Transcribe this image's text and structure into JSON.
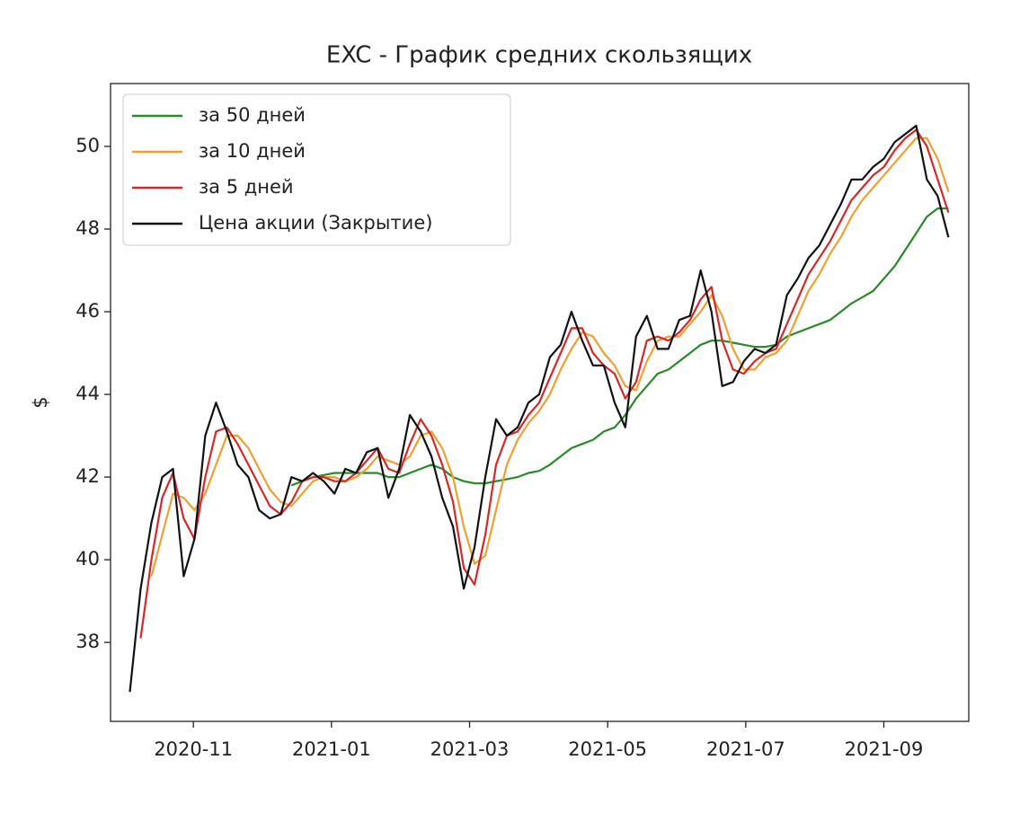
{
  "chart_data": {
    "type": "line",
    "title": "EXC - График средних скользящих",
    "ylabel": "$",
    "x": [
      10.08,
      10.236,
      10.392,
      10.548,
      10.704,
      10.86,
      11.016,
      11.172,
      11.328,
      11.484,
      11.64,
      11.796,
      11.952,
      12.108,
      12.264,
      12.42,
      12.576,
      12.732,
      12.888,
      13.044,
      13.2,
      13.356,
      13.512,
      13.668,
      13.824,
      13.98,
      14.136,
      14.292,
      14.448,
      14.604,
      14.76,
      14.916,
      15.072,
      15.228,
      15.384,
      15.54,
      15.696,
      15.852,
      16.008,
      16.164,
      16.32,
      16.476,
      16.632,
      16.788,
      16.944,
      17.1,
      17.256,
      17.412,
      17.568,
      17.724,
      17.88,
      18.036,
      18.192,
      18.348,
      18.504,
      18.66,
      18.816,
      18.972,
      19.128,
      19.284,
      19.44,
      19.596,
      19.752,
      19.908,
      20.064,
      20.22,
      20.376,
      20.532,
      20.688,
      20.844,
      21.0,
      21.156,
      21.312,
      21.468,
      21.624,
      21.78,
      21.936
    ],
    "series": [
      {
        "name": "за 50 дней",
        "color": "#2a8a2a",
        "values": [
          null,
          null,
          null,
          null,
          null,
          null,
          null,
          null,
          null,
          null,
          null,
          null,
          null,
          null,
          null,
          41.8,
          41.9,
          42.0,
          42.05,
          42.1,
          42.1,
          42.1,
          42.1,
          42.1,
          42.0,
          42.0,
          42.1,
          42.2,
          42.3,
          42.2,
          42.0,
          41.9,
          41.85,
          41.85,
          41.9,
          41.95,
          42.0,
          42.1,
          42.15,
          42.3,
          42.5,
          42.7,
          42.8,
          42.9,
          43.1,
          43.2,
          43.5,
          43.9,
          44.2,
          44.5,
          44.6,
          44.8,
          45.0,
          45.2,
          45.3,
          45.3,
          45.25,
          45.2,
          45.15,
          45.15,
          45.2,
          45.4,
          45.5,
          45.6,
          45.7,
          45.8,
          46.0,
          46.2,
          46.35,
          46.5,
          46.8,
          47.1,
          47.5,
          47.9,
          48.3,
          48.5,
          48.5
        ]
      },
      {
        "name": "за 10 дней",
        "color": "#f0a030",
        "values": [
          null,
          null,
          39.6,
          40.6,
          41.6,
          41.5,
          41.2,
          41.6,
          42.3,
          43.0,
          43.0,
          42.7,
          42.2,
          41.7,
          41.4,
          41.3,
          41.6,
          41.9,
          42.0,
          42.0,
          41.9,
          42.0,
          42.2,
          42.5,
          42.4,
          42.3,
          42.5,
          43.0,
          43.1,
          42.7,
          42.0,
          40.8,
          39.9,
          40.1,
          41.2,
          42.3,
          42.9,
          43.3,
          43.6,
          44.0,
          44.6,
          45.1,
          45.5,
          45.4,
          45.0,
          44.7,
          44.2,
          44.1,
          44.8,
          45.3,
          45.4,
          45.4,
          45.7,
          46.0,
          46.4,
          45.9,
          45.1,
          44.6,
          44.6,
          44.9,
          45.0,
          45.3,
          45.9,
          46.5,
          46.9,
          47.4,
          47.8,
          48.3,
          48.7,
          49.0,
          49.3,
          49.6,
          49.9,
          50.2,
          50.2,
          49.7,
          48.9
        ]
      },
      {
        "name": "за 5 дней",
        "color": "#d62828",
        "values": [
          null,
          38.1,
          40.0,
          41.5,
          42.1,
          41.0,
          40.5,
          42.0,
          43.1,
          43.2,
          42.8,
          42.3,
          41.8,
          41.3,
          41.1,
          41.4,
          41.9,
          42.0,
          42.0,
          41.9,
          41.9,
          42.1,
          42.4,
          42.7,
          42.2,
          42.1,
          42.8,
          43.4,
          43.0,
          42.3,
          41.4,
          39.8,
          39.4,
          40.6,
          42.3,
          43.0,
          43.1,
          43.5,
          43.8,
          44.4,
          45.0,
          45.6,
          45.6,
          45.0,
          44.7,
          44.5,
          43.9,
          44.3,
          45.3,
          45.4,
          45.3,
          45.5,
          45.8,
          46.3,
          46.6,
          45.3,
          44.6,
          44.5,
          44.8,
          45.0,
          45.1,
          45.7,
          46.3,
          46.9,
          47.3,
          47.7,
          48.2,
          48.7,
          49.0,
          49.3,
          49.5,
          49.9,
          50.2,
          50.4,
          50.0,
          49.2,
          48.4
        ]
      },
      {
        "name": "Цена акции (Закрытие)",
        "color": "#111111",
        "values": [
          36.8,
          39.3,
          40.9,
          42.0,
          42.2,
          39.6,
          40.5,
          43.0,
          43.8,
          43.1,
          42.3,
          42.0,
          41.2,
          41.0,
          41.1,
          42.0,
          41.9,
          42.1,
          41.9,
          41.6,
          42.2,
          42.1,
          42.6,
          42.7,
          41.5,
          42.2,
          43.5,
          43.1,
          42.5,
          41.5,
          40.8,
          39.3,
          40.3,
          42.0,
          43.4,
          43.0,
          43.2,
          43.8,
          44.0,
          44.9,
          45.2,
          46.0,
          45.3,
          44.7,
          44.7,
          43.8,
          43.2,
          45.4,
          45.9,
          45.1,
          45.1,
          45.8,
          45.9,
          47.0,
          46.0,
          44.2,
          44.3,
          44.8,
          45.1,
          45.0,
          45.2,
          46.4,
          46.8,
          47.3,
          47.6,
          48.1,
          48.6,
          49.2,
          49.2,
          49.5,
          49.7,
          50.1,
          50.3,
          50.5,
          49.2,
          48.8,
          47.8
        ]
      }
    ],
    "xlim": [
      9.8,
      22.23
    ],
    "ylim": [
      36.09,
      51.52
    ],
    "xticks": [
      {
        "value": 11,
        "label": "2020-11"
      },
      {
        "value": 13,
        "label": "2021-01"
      },
      {
        "value": 15,
        "label": "2021-03"
      },
      {
        "value": 17,
        "label": "2021-05"
      },
      {
        "value": 19,
        "label": "2021-07"
      },
      {
        "value": 21,
        "label": "2021-09"
      }
    ],
    "yticks": [
      38,
      40,
      42,
      44,
      46,
      48,
      50
    ],
    "legend": "upper-left",
    "grid": false
  }
}
